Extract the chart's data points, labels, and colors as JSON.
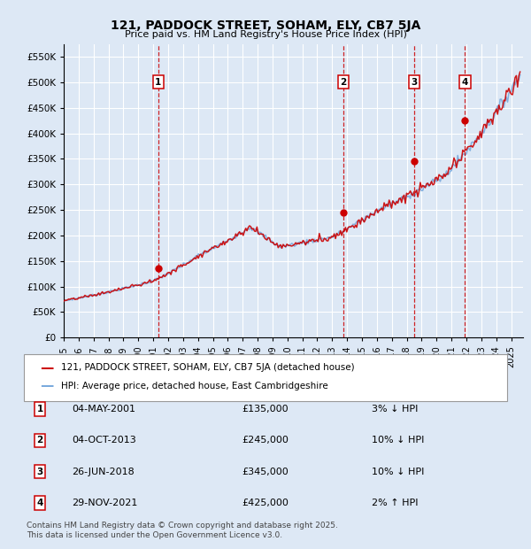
{
  "title": "121, PADDOCK STREET, SOHAM, ELY, CB7 5JA",
  "subtitle": "Price paid vs. HM Land Registry's House Price Index (HPI)",
  "ytick_values": [
    0,
    50000,
    100000,
    150000,
    200000,
    250000,
    300000,
    350000,
    400000,
    450000,
    500000,
    550000
  ],
  "ylim": [
    0,
    575000
  ],
  "xlim_start": 1995.0,
  "xlim_end": 2025.8,
  "background_color": "#dde8f5",
  "grid_color": "#ffffff",
  "transaction_color": "#cc0000",
  "hpi_color": "#7aaadd",
  "transaction_label": "121, PADDOCK STREET, SOHAM, ELY, CB7 5JA (detached house)",
  "hpi_label": "HPI: Average price, detached house, East Cambridgeshire",
  "sales": [
    {
      "num": 1,
      "date": "04-MAY-2001",
      "price": 135000,
      "hpi_diff": "3% ↓ HPI",
      "year": 2001.34
    },
    {
      "num": 2,
      "date": "04-OCT-2013",
      "price": 245000,
      "hpi_diff": "10% ↓ HPI",
      "year": 2013.75
    },
    {
      "num": 3,
      "date": "26-JUN-2018",
      "price": 345000,
      "hpi_diff": "10% ↓ HPI",
      "year": 2018.49
    },
    {
      "num": 4,
      "date": "29-NOV-2021",
      "price": 425000,
      "hpi_diff": "2% ↑ HPI",
      "year": 2021.91
    }
  ],
  "vline_color": "#cc0000",
  "footer": "Contains HM Land Registry data © Crown copyright and database right 2025.\nThis data is licensed under the Open Government Licence v3.0.",
  "xtick_years": [
    1995,
    1996,
    1997,
    1998,
    1999,
    2000,
    2001,
    2002,
    2003,
    2004,
    2005,
    2006,
    2007,
    2008,
    2009,
    2010,
    2011,
    2012,
    2013,
    2014,
    2015,
    2016,
    2017,
    2018,
    2019,
    2020,
    2021,
    2022,
    2023,
    2024,
    2025
  ]
}
